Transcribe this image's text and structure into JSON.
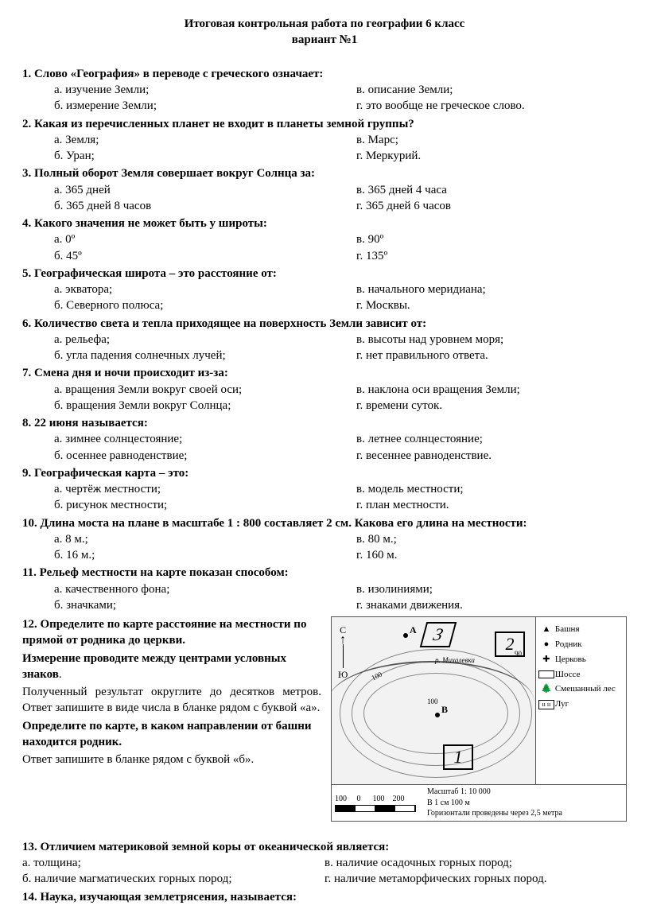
{
  "title_line1": "Итоговая контрольная работа  по географии 6 класс",
  "title_line2": "вариант №1",
  "questions": [
    {
      "n": "1.",
      "text": "Слово «География» в переводе с греческого означает:",
      "a": "а. изучение Земли;",
      "b": "б. измерение Земли;",
      "v": "в. описание Земли;",
      "g": "г. это вообще не греческое слово."
    },
    {
      "n": "2.",
      "text": "Какая из перечисленных планет не входит в планеты земной группы?",
      "a": "а. Земля;",
      "b": "б. Уран;",
      "v": "в. Марс;",
      "g": "г. Меркурий."
    },
    {
      "n": "3.",
      "text": "Полный оборот Земля совершает вокруг Солнца за:",
      "a": "а. 365 дней",
      "b": "б. 365 дней 8 часов",
      "v": "в. 365 дней 4 часа",
      "g": "г. 365 дней 6 часов"
    },
    {
      "n": "4.",
      "text": "Какого значения не может быть у широты:",
      "a": "а. 0º",
      "b": "б. 45º",
      "v": "в. 90º",
      "g": "г. 135º"
    },
    {
      "n": "5.",
      "text": "Географическая широта – это расстояние от:",
      "a": "а. экватора;",
      "b": "б. Северного полюса;",
      "v": "в. начального меридиана;",
      "g": "г. Москвы."
    },
    {
      "n": "6.",
      "text": "Количество света и тепла приходящее на поверхность Земли зависит от:",
      "a": "а. рельефа;",
      "b": "б. угла падения солнечных лучей;",
      "v": "в. высоты над уровнем моря;",
      "g": "г. нет правильного ответа."
    },
    {
      "n": "7.",
      "text": "Смена дня и ночи происходит из-за:",
      "a": "а. вращения Земли вокруг своей оси;",
      "b": "б. вращения Земли вокруг Солнца;",
      "v": "в. наклона оси вращения Земли;",
      "g": "г. времени суток."
    },
    {
      "n": "8.",
      "text": "22 июня называется:",
      "a": "а. зимнее солнцестояние;",
      "b": "б. осеннее равноденствие;",
      "v": "в. летнее солнцестояние;",
      "g": "г. весеннее равноденствие."
    },
    {
      "n": "9.",
      "text": "Географическая карта – это:",
      "a": "а. чертёж местности;",
      "b": "б. рисунок местности;",
      "v": "в. модель местности;",
      "g": "г. план местности."
    },
    {
      "n": "10.",
      "text": "Длина моста на плане в масштабе 1 : 800 составляет 2 см. Какова его длина на местности:",
      "a": "а. 8 м.;",
      "b": "б. 16 м.;",
      "v": "в. 80 м.;",
      "g": "г. 160 м."
    },
    {
      "n": "11.",
      "text": "Рельеф местности на карте показан способом:",
      "a": "а. качественного фона;",
      "b": "б. значками;",
      "v": "в. изолиниями;",
      "g": "г. знаками движения."
    }
  ],
  "q12": {
    "n": "12.",
    "p1_bold": "Определите по карте расстояние на местности по прямой от родника до церкви.",
    "p2_bold_a": "Измерение проводите между центрами условных знаков",
    "p2_tail": ".",
    "p3_just": "Полученный результат округлите до десятков метров. Ответ запишите в виде числа в бланке рядом с  буквой «а».",
    "p4_bold": "Определите по карте, в каком направлении от  башни находится родник.",
    "p5": "Ответ запишите  в бланке рядом с буквой «б».",
    "legend": {
      "tower": "Башня",
      "spring": "Родник",
      "church": "Церковь",
      "road": "Шоссе",
      "forest": "Смешанный лес",
      "meadow": "Луг"
    },
    "compass_n": "С",
    "compass_s": "Ю",
    "label_a": "А",
    "label_b": "В",
    "sq1": "1",
    "sq2": "2",
    "sq3": "3",
    "river": "р. Михалевка",
    "scale_nums": "100     0      100    200",
    "scale_title": "Масштаб   1: 10 000",
    "scale_sub1": "В 1 см 100 м",
    "scale_sub2": "Горизонтали проведены через 2,5 метра"
  },
  "q13": {
    "n": "13.",
    "text": "Отличием материковой земной коры от океанической является:",
    "a": "а. толщина;",
    "b": "б. наличие магматических горных пород;",
    "v": "в. наличие осадочных горных пород;",
    "g": "г. наличие метаморфических горных пород."
  },
  "q14": {
    "n": "14.",
    "text": "Наука, изучающая землетрясения, называется:"
  }
}
